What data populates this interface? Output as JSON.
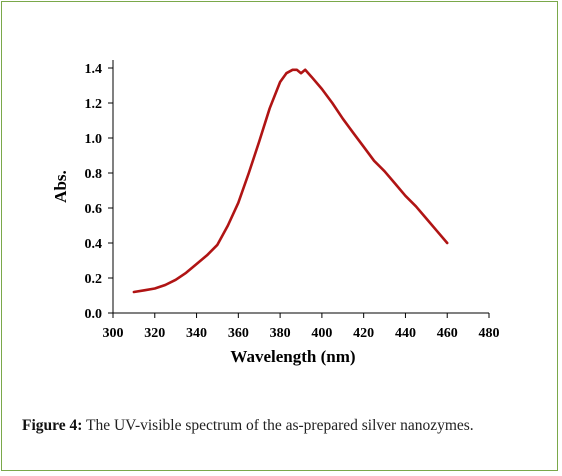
{
  "chart_data": {
    "type": "line",
    "xlabel": "Wavelength (nm)",
    "ylabel": "Abs.",
    "xlim": [
      300,
      480
    ],
    "ylim": [
      0.0,
      1.4
    ],
    "x_ticks": [
      "300",
      "320",
      "340",
      "360",
      "380",
      "400",
      "420",
      "440",
      "460",
      "480"
    ],
    "y_ticks": [
      "0.0",
      "0.2",
      "0.4",
      "0.6",
      "0.8",
      "1.0",
      "1.2",
      "1.4"
    ],
    "grid": false,
    "legend": "none",
    "series": [
      {
        "color": "#b01414",
        "x": [
          310,
          315,
          320,
          325,
          330,
          335,
          340,
          345,
          350,
          355,
          360,
          365,
          370,
          375,
          380,
          383,
          386,
          388,
          390,
          392,
          395,
          400,
          405,
          410,
          415,
          420,
          425,
          430,
          435,
          440,
          445,
          450,
          455,
          460
        ],
        "y": [
          0.12,
          0.13,
          0.14,
          0.16,
          0.19,
          0.23,
          0.28,
          0.33,
          0.39,
          0.5,
          0.63,
          0.8,
          0.98,
          1.17,
          1.32,
          1.37,
          1.39,
          1.39,
          1.37,
          1.39,
          1.35,
          1.28,
          1.2,
          1.11,
          1.03,
          0.95,
          0.87,
          0.81,
          0.74,
          0.67,
          0.61,
          0.54,
          0.47,
          0.4
        ]
      }
    ]
  },
  "caption": {
    "label": "Figure 4:",
    "text": " The UV-visible spectrum of the as-prepared silver nanozymes."
  }
}
